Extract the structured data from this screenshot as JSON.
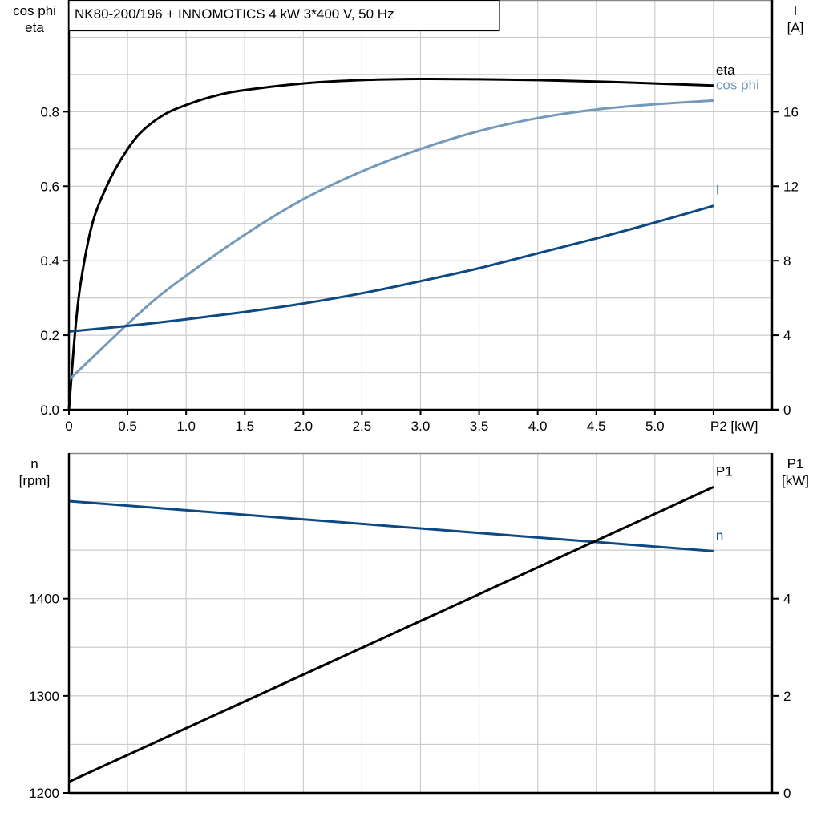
{
  "chart_data": [
    {
      "type": "line",
      "title": "NK80-200/196 + INNOMOTICS   4 kW   3*400 V, 50 Hz",
      "xlabel": "P2 [kW]",
      "xlim": [
        0,
        6
      ],
      "x_ticks": [
        "0",
        "0.5",
        "1.0",
        "1.5",
        "2.0",
        "2.5",
        "3.0",
        "3.5",
        "4.0",
        "4.5",
        "5.0"
      ],
      "y_left": {
        "label_line1": "cos phi",
        "label_line2": "eta",
        "lim": [
          0,
          1.1
        ],
        "ticks": [
          "0.0",
          "0.2",
          "0.4",
          "0.6",
          "0.8"
        ]
      },
      "y_right": {
        "label_line1": "I",
        "label_line2": "[A]",
        "lim": [
          0,
          22
        ],
        "ticks": [
          "0",
          "4",
          "8",
          "12",
          "16"
        ]
      },
      "grid": true,
      "series": [
        {
          "name": "eta",
          "axis": "left",
          "color": "#000000",
          "x": [
            0,
            0.05,
            0.1,
            0.2,
            0.33,
            0.45,
            0.6,
            0.8,
            1.0,
            1.25,
            1.5,
            2.0,
            2.5,
            3.0,
            3.5,
            4.0,
            4.5,
            5.0,
            5.5
          ],
          "y": [
            0,
            0.2,
            0.34,
            0.5,
            0.605,
            0.675,
            0.74,
            0.79,
            0.818,
            0.843,
            0.858,
            0.876,
            0.885,
            0.888,
            0.887,
            0.885,
            0.881,
            0.876,
            0.87
          ]
        },
        {
          "name": "cos phi",
          "axis": "left",
          "color": "#7499ba",
          "x": [
            0,
            0.25,
            0.5,
            0.75,
            1.0,
            1.5,
            2.0,
            2.5,
            3.0,
            3.5,
            4.0,
            4.5,
            5.0,
            5.5
          ],
          "y": [
            0.08,
            0.155,
            0.23,
            0.3,
            0.36,
            0.47,
            0.565,
            0.64,
            0.7,
            0.748,
            0.783,
            0.806,
            0.82,
            0.83
          ]
        },
        {
          "name": "I",
          "axis": "right",
          "color": "#0d4a84",
          "x": [
            0,
            0.5,
            1.0,
            1.5,
            2.0,
            2.5,
            3.0,
            3.5,
            4.0,
            4.5,
            5.0,
            5.5
          ],
          "y": [
            4.2,
            4.5,
            4.85,
            5.25,
            5.7,
            6.25,
            6.9,
            7.6,
            8.4,
            9.2,
            10.05,
            10.95
          ]
        }
      ]
    },
    {
      "type": "line",
      "xlim": [
        0,
        6
      ],
      "y_left": {
        "label_line1": "n",
        "label_line2": "[rpm]",
        "lim": [
          1200,
          1550
        ],
        "ticks": [
          "1200",
          "1300",
          "1400"
        ]
      },
      "y_right": {
        "label_line1": "P1",
        "label_line2": "[kW]",
        "lim": [
          0,
          7
        ],
        "ticks": [
          "0",
          "2",
          "4"
        ]
      },
      "grid": true,
      "series": [
        {
          "name": "n",
          "axis": "left",
          "color": "#0d4a84",
          "x": [
            0,
            5.5
          ],
          "y": [
            1500.5,
            1449
          ]
        },
        {
          "name": "P1",
          "axis": "right",
          "color": "#000000",
          "x": [
            0,
            5.5
          ],
          "y": [
            0.23,
            6.3
          ]
        }
      ]
    }
  ]
}
